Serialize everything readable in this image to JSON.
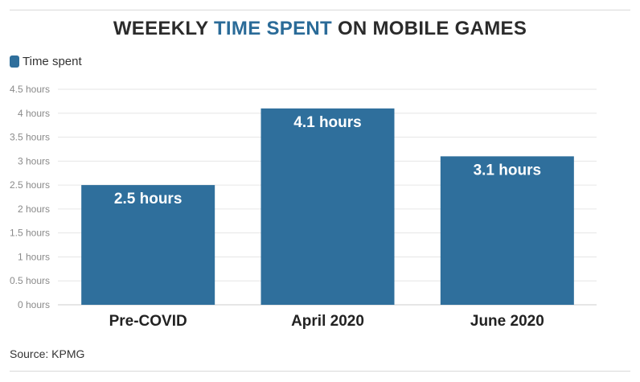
{
  "title": {
    "part1": "WEEEKLY ",
    "highlight": "TIME SPENT",
    "part2": " ON MOBILE GAMES"
  },
  "legend": {
    "label": "Time spent"
  },
  "source": "Source: KPMG",
  "colors": {
    "bar": "#2f6f9c",
    "highlight": "#2a6b98",
    "grid": "#e6e6e6"
  },
  "chart_data": {
    "type": "bar",
    "title": "WEEEKLY TIME SPENT ON MOBILE GAMES",
    "categories": [
      "Pre-COVID",
      "April 2020",
      "June 2020"
    ],
    "series": [
      {
        "name": "Time spent",
        "values": [
          2.5,
          4.1,
          3.1
        ]
      }
    ],
    "data_labels": [
      "2.5 hours",
      "4.1 hours",
      "3.1 hours"
    ],
    "y_ticks": [
      0,
      0.5,
      1,
      1.5,
      2,
      2.5,
      3,
      3.5,
      4,
      4.5
    ],
    "y_tick_labels": [
      "0 hours",
      "0.5 hours",
      "1 hours",
      "1.5 hours",
      "2 hours",
      "2.5 hours",
      "3 hours",
      "3.5 hours",
      "4 hours",
      "4.5 hours"
    ],
    "ylim": [
      0,
      4.5
    ],
    "grid": true,
    "legend_position": "top-left"
  }
}
